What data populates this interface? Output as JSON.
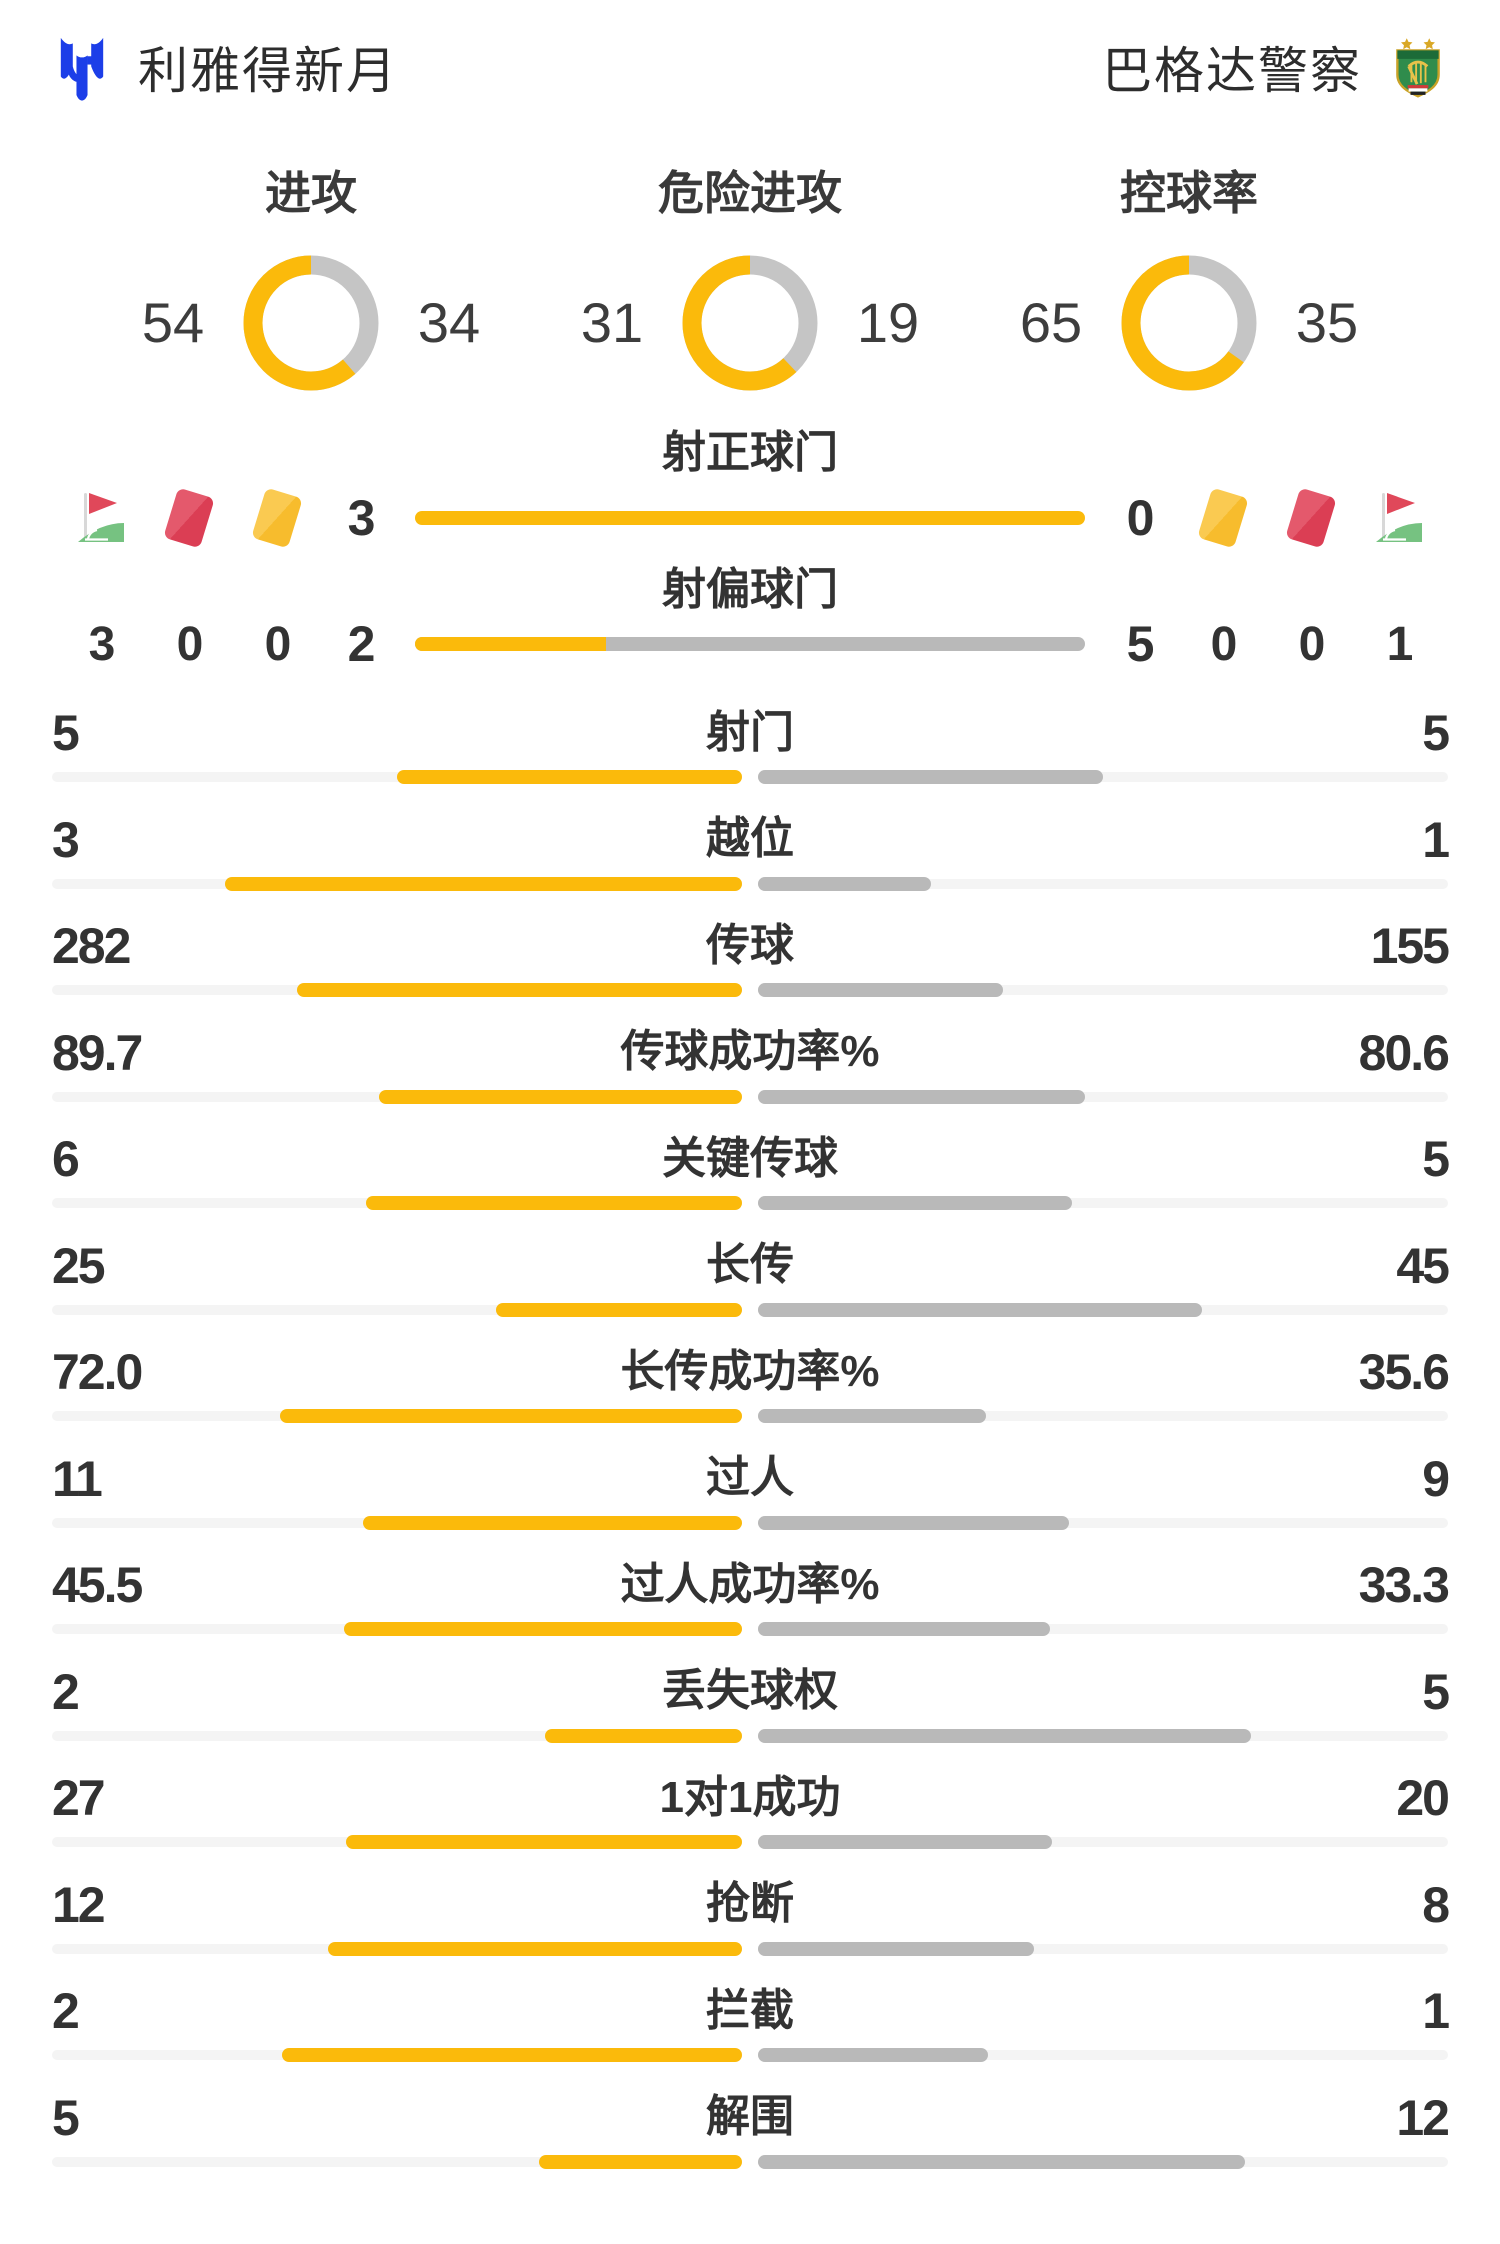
{
  "header": {
    "home": {
      "name": "利雅得新月"
    },
    "away": {
      "name": "巴格达警察"
    }
  },
  "donuts": [
    {
      "label": "进攻",
      "home": 54,
      "away": 34
    },
    {
      "label": "危险进攻",
      "home": 31,
      "away": 19
    },
    {
      "label": "控球率",
      "home": 65,
      "away": 35
    }
  ],
  "shots_section": {
    "rows": [
      {
        "label": "射正球门",
        "home": 3,
        "away": 0
      },
      {
        "label": "射偏球门",
        "home": 2,
        "away": 5
      }
    ],
    "discipline": {
      "home": {
        "icons": [
          "corner-flag",
          "red-card",
          "yellow-card"
        ],
        "counts": [
          "3",
          "0",
          "0"
        ]
      },
      "away": {
        "icons": [
          "yellow-card",
          "red-card",
          "corner-flag"
        ],
        "counts": [
          "0",
          "0",
          "1"
        ]
      }
    }
  },
  "stats": [
    {
      "label": "射门",
      "home": "5",
      "away": "5"
    },
    {
      "label": "越位",
      "home": "3",
      "away": "1"
    },
    {
      "label": "传球",
      "home": "282",
      "away": "155"
    },
    {
      "label": "传球成功率%",
      "home": "89.7",
      "away": "80.6"
    },
    {
      "label": "关键传球",
      "home": "6",
      "away": "5"
    },
    {
      "label": "长传",
      "home": "25",
      "away": "45"
    },
    {
      "label": "长传成功率%",
      "home": "72.0",
      "away": "35.6"
    },
    {
      "label": "过人",
      "home": "11",
      "away": "9"
    },
    {
      "label": "过人成功率%",
      "home": "45.5",
      "away": "33.3"
    },
    {
      "label": "丢失球权",
      "home": "2",
      "away": "5"
    },
    {
      "label": "1对1成功",
      "home": "27",
      "away": "20"
    },
    {
      "label": "抢断",
      "home": "12",
      "away": "8"
    },
    {
      "label": "拦截",
      "home": "2",
      "away": "1"
    },
    {
      "label": "解围",
      "home": "5",
      "away": "12"
    }
  ],
  "colors": {
    "accent": "#FBBA0B",
    "gray_bar": "#B9B9B9",
    "donut_gray": "#C5C5C5",
    "track": "#F4F4F4",
    "text": "#333333",
    "home_blue": "#1C3EE8",
    "card_red": "#E0485A",
    "card_yellow": "#F8C33C",
    "flag_green": "#76C281"
  },
  "chart_data": [
    {
      "type": "pie",
      "title": "进攻",
      "series": [
        {
          "name": "利雅得新月",
          "value": 54
        },
        {
          "name": "巴格达警察",
          "value": 34
        }
      ]
    },
    {
      "type": "pie",
      "title": "危险进攻",
      "series": [
        {
          "name": "利雅得新月",
          "value": 31
        },
        {
          "name": "巴格达警察",
          "value": 19
        }
      ]
    },
    {
      "type": "pie",
      "title": "控球率",
      "series": [
        {
          "name": "利雅得新月",
          "value": 65
        },
        {
          "name": "巴格达警察",
          "value": 35
        }
      ]
    },
    {
      "type": "bar",
      "title": "比赛统计",
      "categories": [
        "角球",
        "红牌",
        "黄牌",
        "射正球门",
        "射偏球门",
        "射门",
        "越位",
        "传球",
        "传球成功率%",
        "关键传球",
        "长传",
        "长传成功率%",
        "过人",
        "过人成功率%",
        "丢失球权",
        "1对1成功",
        "抢断",
        "拦截",
        "解围"
      ],
      "series": [
        {
          "name": "利雅得新月",
          "values": [
            3,
            0,
            0,
            3,
            2,
            5,
            3,
            282,
            89.7,
            6,
            25,
            72.0,
            11,
            45.5,
            2,
            27,
            12,
            2,
            5
          ]
        },
        {
          "name": "巴格达警察",
          "values": [
            1,
            0,
            0,
            0,
            5,
            5,
            1,
            155,
            80.6,
            5,
            45,
            35.6,
            9,
            33.3,
            5,
            20,
            8,
            1,
            12
          ]
        }
      ],
      "legend_position": "top",
      "grid": false
    }
  ]
}
